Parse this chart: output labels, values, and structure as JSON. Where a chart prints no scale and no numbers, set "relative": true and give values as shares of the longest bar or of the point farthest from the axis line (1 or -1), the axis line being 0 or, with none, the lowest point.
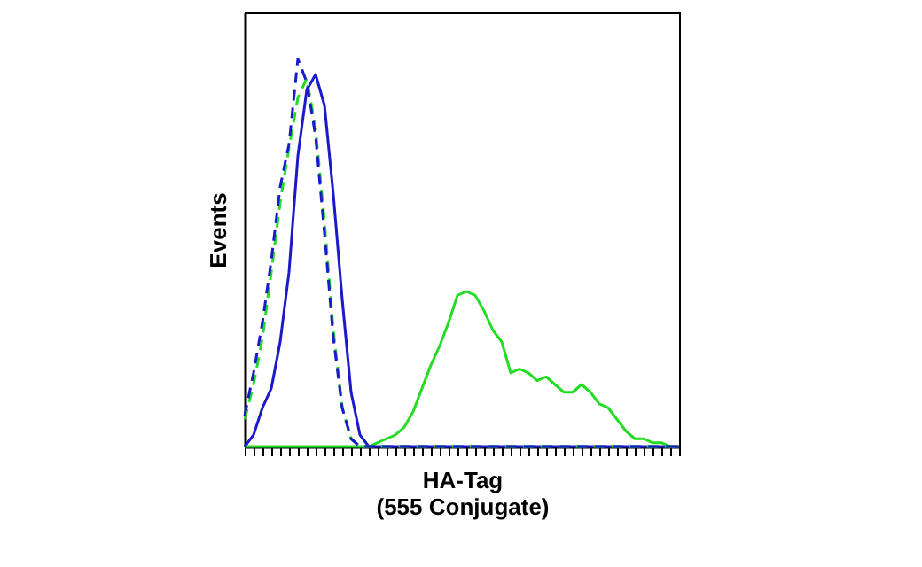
{
  "chart_data": {
    "type": "line",
    "relative": true,
    "xlabel": "HA-Tag\n(555 Conjugate)",
    "ylabel": "Events",
    "categories": [
      null,
      null,
      null,
      null,
      null,
      null,
      null,
      null,
      null,
      null,
      null,
      null,
      null,
      null,
      null,
      null,
      null,
      null,
      null,
      null,
      null,
      null,
      null,
      null,
      null,
      null,
      null,
      null,
      null,
      null,
      null,
      null,
      null,
      null,
      null,
      null,
      null,
      null,
      null,
      null,
      null,
      null,
      null,
      null,
      null,
      null,
      null,
      null,
      null,
      null
    ],
    "series": [
      {
        "color": "#22dd22",
        "line_style": "solid",
        "values": [
          0,
          0,
          0,
          0,
          0,
          0,
          0,
          0,
          0,
          0,
          0,
          0,
          0,
          0,
          0,
          0.01,
          0.02,
          0.03,
          0.05,
          0.09,
          0.15,
          0.21,
          0.26,
          0.32,
          0.39,
          0.4,
          0.39,
          0.35,
          0.3,
          0.27,
          0.19,
          0.2,
          0.19,
          0.17,
          0.18,
          0.16,
          0.14,
          0.14,
          0.16,
          0.14,
          0.11,
          0.1,
          0.07,
          0.04,
          0.02,
          0.02,
          0.01,
          0.01,
          0,
          0
        ]
      },
      {
        "color": "#1a1acc",
        "line_style": "solid",
        "values": [
          0,
          0.03,
          0.1,
          0.15,
          0.27,
          0.45,
          0.75,
          0.92,
          0.96,
          0.88,
          0.65,
          0.38,
          0.14,
          0.03,
          0,
          0,
          0,
          0,
          0,
          0,
          0,
          0,
          0,
          0,
          0,
          0,
          0,
          0,
          0,
          0,
          0,
          0,
          0,
          0,
          0,
          0,
          0,
          0,
          0,
          0,
          0,
          0,
          0,
          0,
          0,
          0,
          0,
          0,
          0,
          0
        ]
      },
      {
        "color": "#22dd22",
        "line_style": "dashed",
        "values": [
          0.07,
          0.16,
          0.28,
          0.45,
          0.63,
          0.77,
          0.9,
          0.95,
          0.82,
          0.58,
          0.3,
          0.1,
          0.02,
          0,
          0,
          0,
          0,
          0,
          0,
          0,
          0,
          0,
          0,
          0,
          0,
          0,
          0,
          0,
          0,
          0,
          0,
          0,
          0,
          0,
          0,
          0,
          0,
          0,
          0,
          0,
          0,
          0,
          0,
          0,
          0,
          0,
          0,
          0,
          0,
          0
        ]
      },
      {
        "color": "#1a1acc",
        "line_style": "dashed",
        "values": [
          0.08,
          0.19,
          0.32,
          0.48,
          0.67,
          0.78,
          1,
          0.94,
          0.8,
          0.55,
          0.28,
          0.1,
          0.02,
          0,
          0,
          0,
          0,
          0,
          0,
          0,
          0,
          0,
          0,
          0,
          0,
          0,
          0,
          0,
          0,
          0,
          0,
          0,
          0,
          0,
          0,
          0,
          0,
          0,
          0,
          0,
          0,
          0,
          0,
          0,
          0,
          0,
          0,
          0,
          0,
          0
        ]
      }
    ]
  }
}
